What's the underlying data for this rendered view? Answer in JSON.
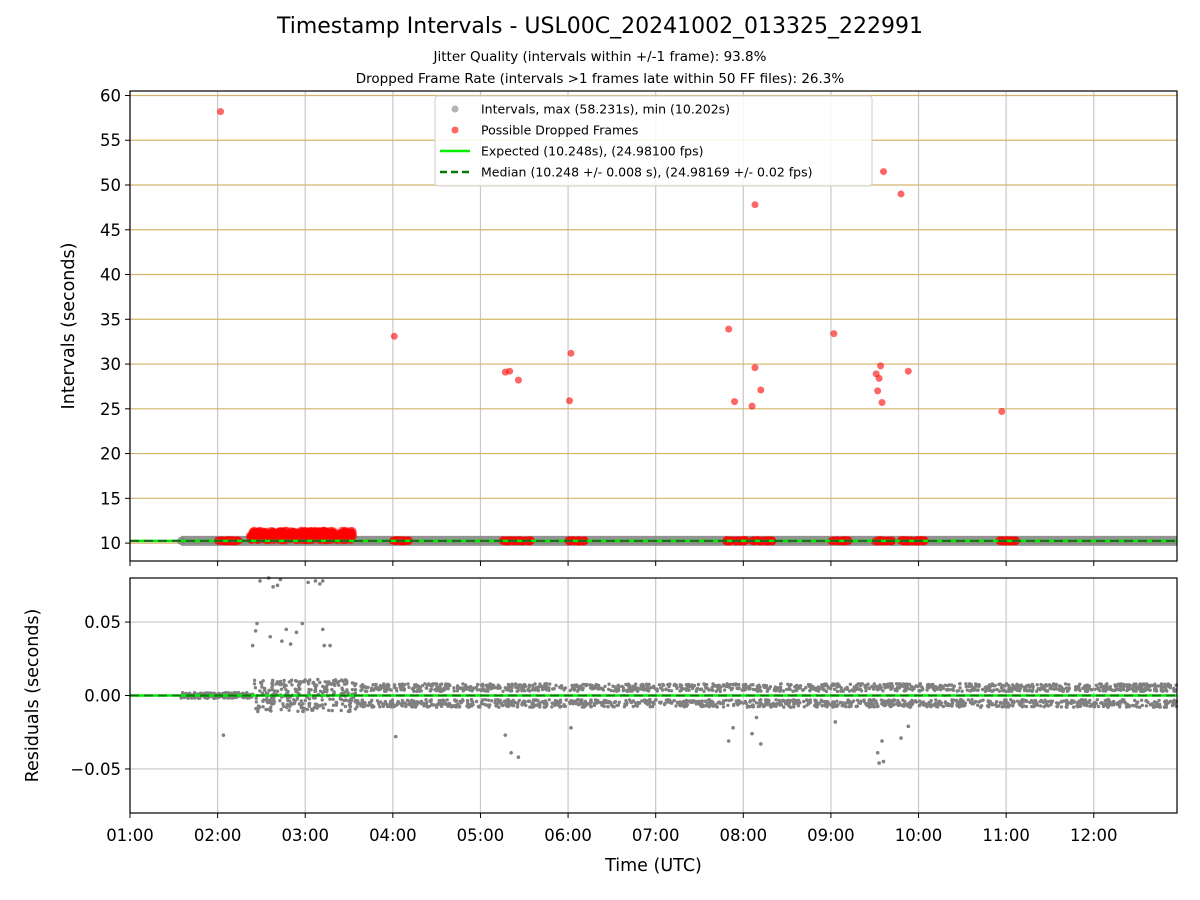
{
  "title": "Timestamp Intervals - USL00C_20241002_013325_222991",
  "subtitle1": "Jitter Quality (intervals within +/-1 frame): 93.8%",
  "subtitle2": "Dropped Frame Rate (intervals >1 frames late within 50 FF files): 26.3%",
  "colors": {
    "intervals": "#808080",
    "dropped": "#ff0000",
    "expected": "#00ee00",
    "median": "#007a00",
    "hgrid": "#d4b46a",
    "grid": "#c8c8c8"
  },
  "chart_data": [
    {
      "type": "scatter",
      "title": "Timestamp Intervals - USL00C_20241002_013325_222991",
      "xlabel": "",
      "ylabel": "Intervals (seconds)",
      "xlim": [
        "01:00",
        "12:57"
      ],
      "ylim": [
        8,
        60.5
      ],
      "yticks": [
        10,
        15,
        20,
        25,
        30,
        35,
        40,
        45,
        50,
        55,
        60
      ],
      "legend": {
        "placement": "upper center",
        "entries": [
          "Intervals, max (58.231s), min (10.202s)",
          "Possible Dropped Frames",
          "Expected (10.248s), (24.98100 fps)",
          "Median (10.248 +/- 0.008 s), (24.98169 +/- 0.02 fps)"
        ]
      },
      "series": [
        {
          "name": "Intervals, max (58.231s), min (10.202s)",
          "kind": "band",
          "x_range": [
            "01:35",
            "12:57"
          ],
          "value": 10.248
        },
        {
          "name": "Possible Dropped Frames",
          "kind": "points",
          "points": [
            [
              "02:02",
              58.2
            ],
            [
              "04:01",
              33.1
            ],
            [
              "05:17",
              29.1
            ],
            [
              "05:20",
              29.2
            ],
            [
              "05:26",
              28.2
            ],
            [
              "06:01",
              25.9
            ],
            [
              "06:02",
              31.2
            ],
            [
              "07:50",
              33.9
            ],
            [
              "07:54",
              25.8
            ],
            [
              "08:06",
              25.3
            ],
            [
              "08:08",
              29.6
            ],
            [
              "08:08",
              47.8
            ],
            [
              "08:12",
              27.1
            ],
            [
              "09:02",
              33.4
            ],
            [
              "09:31",
              28.9
            ],
            [
              "09:32",
              27.0
            ],
            [
              "09:33",
              28.4
            ],
            [
              "09:34",
              29.8
            ],
            [
              "09:35",
              25.7
            ],
            [
              "09:36",
              51.5
            ],
            [
              "09:48",
              49.0
            ],
            [
              "09:53",
              29.2
            ],
            [
              "10:57",
              24.7
            ]
          ],
          "clusters": [
            [
              "02:00",
              "02:15",
              10.25
            ],
            [
              "02:22",
              "03:33",
              10.6
            ],
            [
              "04:00",
              "04:12",
              10.25
            ],
            [
              "05:15",
              "05:35",
              10.25
            ],
            [
              "06:00",
              "06:12",
              10.25
            ],
            [
              "07:48",
              "08:03",
              10.25
            ],
            [
              "08:05",
              "08:20",
              10.25
            ],
            [
              "09:00",
              "09:12",
              10.25
            ],
            [
              "09:30",
              "09:42",
              10.25
            ],
            [
              "09:47",
              "10:05",
              10.25
            ],
            [
              "10:55",
              "11:07",
              10.25
            ]
          ]
        },
        {
          "name": "Expected (10.248s), (24.98100 fps)",
          "kind": "hline",
          "value": 10.248
        },
        {
          "name": "Median (10.248 +/- 0.008 s), (24.98169 +/- 0.02 fps)",
          "kind": "hline-dashed",
          "value": 10.248
        }
      ]
    },
    {
      "type": "scatter",
      "xlabel": "Time (UTC)",
      "ylabel": "Residuals (seconds)",
      "xlim": [
        "01:00",
        "12:57"
      ],
      "ylim": [
        -0.08,
        0.08
      ],
      "yticks": [
        -0.05,
        0.0,
        0.05
      ],
      "ytick_labels": [
        "−0.05",
        "0.00",
        "0.05"
      ],
      "xticks": [
        "01:00",
        "02:00",
        "03:00",
        "04:00",
        "05:00",
        "06:00",
        "07:00",
        "08:00",
        "09:00",
        "10:00",
        "11:00",
        "12:00"
      ],
      "series": [
        {
          "name": "",
          "kind": "residual-band",
          "x_range": [
            "01:35",
            "12:57"
          ],
          "spread": [
            -0.008,
            0.008
          ]
        },
        {
          "name": "",
          "kind": "points",
          "points": [
            [
              "02:04",
              -0.027
            ],
            [
              "02:24",
              0.034
            ],
            [
              "02:26",
              0.044
            ],
            [
              "02:27",
              0.049
            ],
            [
              "02:29",
              0.078
            ],
            [
              "02:35",
              0.08
            ],
            [
              "02:36",
              0.04
            ],
            [
              "02:38",
              0.074
            ],
            [
              "02:41",
              0.075
            ],
            [
              "02:43",
              0.079
            ],
            [
              "02:44",
              0.037
            ],
            [
              "02:47",
              0.045
            ],
            [
              "02:50",
              0.035
            ],
            [
              "02:54",
              0.043
            ],
            [
              "02:58",
              0.049
            ],
            [
              "03:02",
              0.077
            ],
            [
              "03:07",
              0.078
            ],
            [
              "03:10",
              0.076
            ],
            [
              "03:12",
              0.078
            ],
            [
              "03:12",
              0.045
            ],
            [
              "03:13",
              0.034
            ],
            [
              "03:17",
              0.034
            ],
            [
              "04:02",
              -0.028
            ],
            [
              "05:17",
              -0.027
            ],
            [
              "05:21",
              -0.039
            ],
            [
              "05:26",
              -0.042
            ],
            [
              "06:02",
              -0.022
            ],
            [
              "07:50",
              -0.031
            ],
            [
              "07:53",
              -0.022
            ],
            [
              "08:06",
              -0.026
            ],
            [
              "08:09",
              -0.015
            ],
            [
              "08:12",
              -0.033
            ],
            [
              "09:03",
              -0.018
            ],
            [
              "09:32",
              -0.039
            ],
            [
              "09:33",
              -0.046
            ],
            [
              "09:35",
              -0.031
            ],
            [
              "09:36",
              -0.045
            ],
            [
              "09:48",
              -0.029
            ],
            [
              "09:53",
              -0.021
            ]
          ]
        },
        {
          "name": "",
          "kind": "hline",
          "value": 0.0
        }
      ]
    }
  ]
}
